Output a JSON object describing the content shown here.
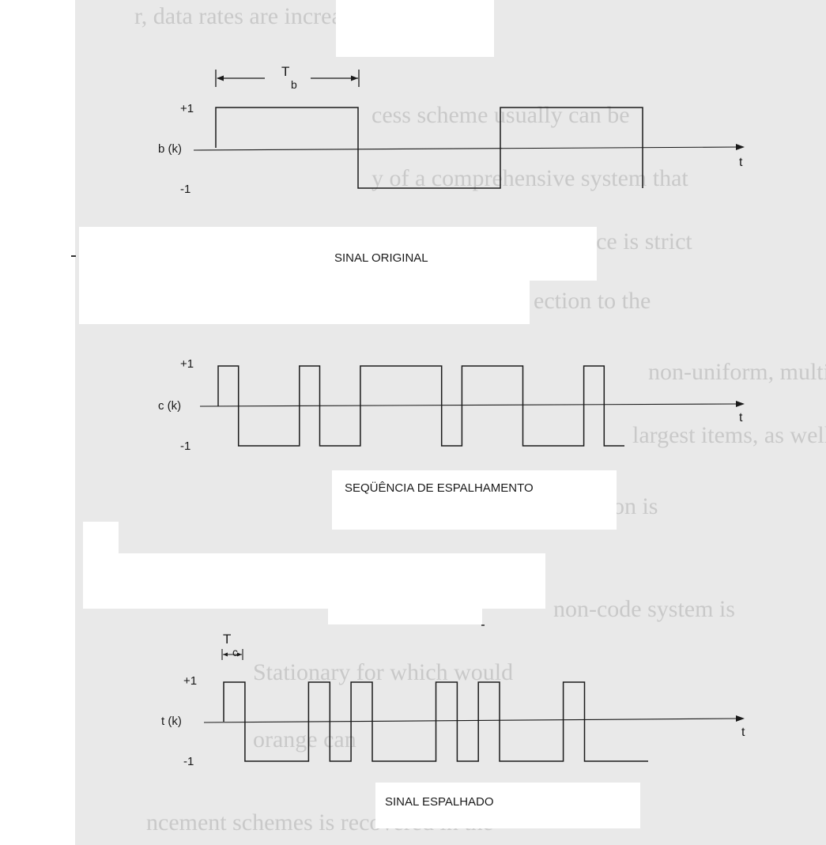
{
  "colors": {
    "page": "#ffffff",
    "scan_background": "#e9e9e9",
    "ink": "#1a1a1a",
    "bleed_text": "#c9c9c9"
  },
  "bleed_through": [
    "r, data rates are increasing",
    "cess scheme usually can be",
    "y of a comprehensive system that",
    "timal performance is strict",
    "ection to the",
    "non-uniform, multi-path channel",
    "largest items, as well as",
    "a bad condition is",
    "non-code system is",
    "Stationary for which would",
    "orange can",
    "ncement schemes is recovered in the"
  ],
  "panels": [
    {
      "id": "original",
      "y_label": "b (k)",
      "plus_label": "+1",
      "minus_label": "-1",
      "time_axis_label": "t",
      "period_symbol": "T",
      "period_subscript": "b",
      "caption": "SINAL ORIGINAL",
      "levels": [
        1,
        -1,
        1
      ]
    },
    {
      "id": "spreading",
      "y_label": "c (k)",
      "plus_label": "+1",
      "minus_label": "-1",
      "time_axis_label": "t",
      "caption": "SEQÜÊNCIA DE ESPALHAMENTO",
      "levels": [
        1,
        -1,
        -1,
        -1,
        1,
        -1,
        -1,
        1,
        1,
        1,
        1,
        -1,
        1,
        1,
        1,
        -1,
        -1,
        -1,
        1,
        -1
      ]
    },
    {
      "id": "spread",
      "y_label": "t (k)",
      "plus_label": "+1",
      "minus_label": "-1",
      "time_axis_label": "t",
      "period_symbol": "T",
      "period_subscript": "c",
      "caption": "SINAL ESPALHADO",
      "levels": [
        1,
        -1,
        -1,
        -1,
        1,
        -1,
        1,
        -1,
        -1,
        -1,
        1,
        -1,
        1,
        -1,
        -1,
        -1,
        1,
        -1,
        -1,
        -1
      ]
    }
  ]
}
